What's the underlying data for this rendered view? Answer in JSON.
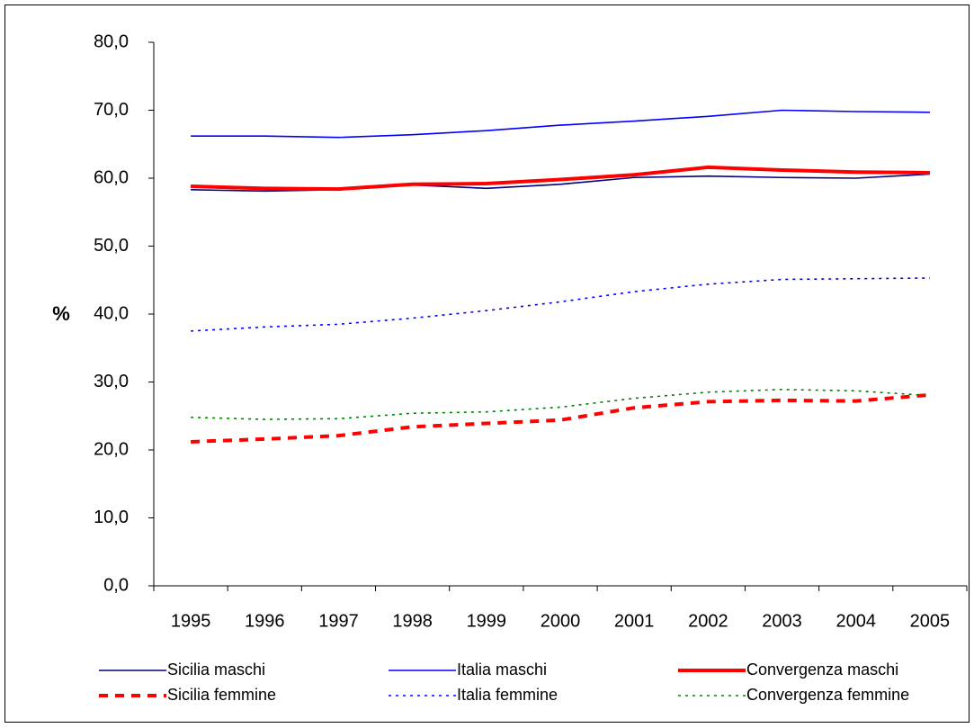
{
  "chart_data": {
    "type": "line",
    "y_label": "%",
    "categories": [
      "1995",
      "1996",
      "1997",
      "1998",
      "1999",
      "2000",
      "2001",
      "2002",
      "2003",
      "2004",
      "2005"
    ],
    "ylim": [
      0,
      80
    ],
    "yticks": [
      {
        "value": 0,
        "label": "0,0"
      },
      {
        "value": 10,
        "label": "10,0"
      },
      {
        "value": 20,
        "label": "20,0"
      },
      {
        "value": 30,
        "label": "30,0"
      },
      {
        "value": 40,
        "label": "40,0"
      },
      {
        "value": 50,
        "label": "50,0"
      },
      {
        "value": 60,
        "label": "60,0"
      },
      {
        "value": 70,
        "label": "70,0"
      },
      {
        "value": 80,
        "label": "80,0"
      }
    ],
    "legend": "bottom",
    "series": [
      {
        "name": "Sicilia maschi",
        "color": "#000080",
        "style": "solid",
        "weight": "thin",
        "values": [
          58.3,
          58.1,
          58.3,
          59.0,
          58.5,
          59.1,
          60.1,
          60.3,
          60.1,
          60.0,
          60.6
        ]
      },
      {
        "name": "Italia maschi",
        "color": "#0000ff",
        "style": "solid",
        "weight": "thin",
        "values": [
          66.2,
          66.2,
          66.0,
          66.4,
          67.0,
          67.8,
          68.4,
          69.1,
          70.0,
          69.8,
          69.7
        ]
      },
      {
        "name": "Convergenza maschi",
        "color": "#ff0000",
        "style": "solid",
        "weight": "thick",
        "values": [
          58.8,
          58.5,
          58.4,
          59.1,
          59.2,
          59.8,
          60.5,
          61.6,
          61.2,
          60.9,
          60.8
        ]
      },
      {
        "name": "Sicilia femmine",
        "color": "#ff0000",
        "style": "dashed",
        "weight": "thick",
        "values": [
          21.2,
          21.6,
          22.1,
          23.4,
          23.9,
          24.4,
          26.2,
          27.1,
          27.3,
          27.2,
          28.1
        ]
      },
      {
        "name": "Italia femmine",
        "color": "#0000ff",
        "style": "dotted",
        "weight": "thin",
        "values": [
          37.5,
          38.1,
          38.5,
          39.4,
          40.5,
          41.8,
          43.3,
          44.4,
          45.1,
          45.2,
          45.3
        ]
      },
      {
        "name": "Convergenza femmine",
        "color": "#008000",
        "style": "dotted",
        "weight": "thin",
        "values": [
          24.8,
          24.5,
          24.6,
          25.4,
          25.6,
          26.3,
          27.6,
          28.5,
          28.9,
          28.7,
          28.0
        ]
      }
    ]
  }
}
